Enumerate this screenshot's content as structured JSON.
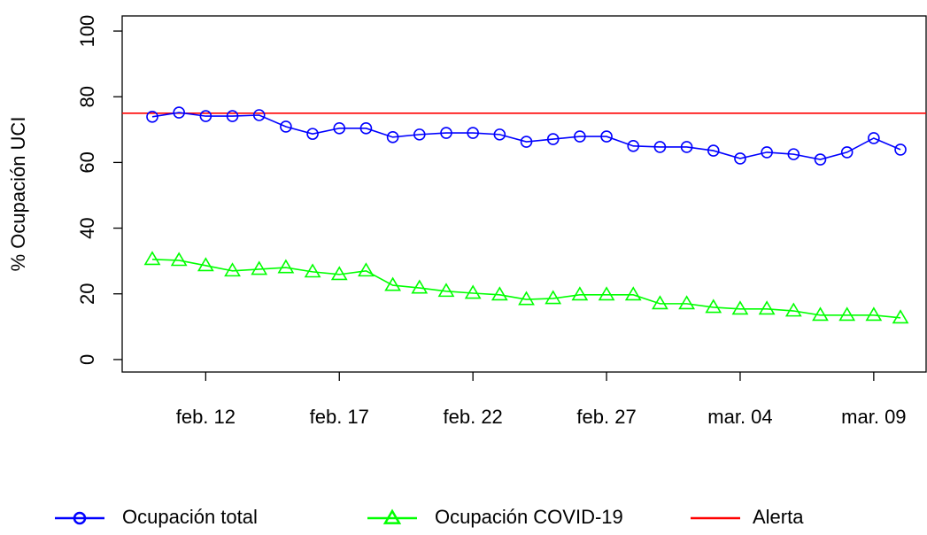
{
  "chart_data": {
    "type": "line",
    "y_label": "% Ocupación UCI",
    "categories": [
      null,
      null,
      "feb. 12",
      null,
      null,
      null,
      null,
      "feb. 17",
      null,
      null,
      null,
      null,
      "feb. 22",
      null,
      null,
      null,
      null,
      "feb. 27",
      null,
      null,
      null,
      null,
      "mar. 04",
      null,
      null,
      null,
      null,
      "mar. 09",
      null
    ],
    "series": [
      {
        "name": "Ocupación total",
        "color": "#0000ff",
        "marker": "circle",
        "values": [
          73.9,
          75.2,
          74.1,
          74.1,
          74.4,
          70.9,
          68.7,
          70.4,
          70.4,
          67.7,
          68.5,
          69.0,
          69.0,
          68.5,
          66.3,
          67.1,
          67.9,
          67.9,
          65.0,
          64.7,
          64.7,
          63.6,
          61.2,
          63.1,
          62.5,
          60.9,
          63.1,
          67.4,
          63.9
        ]
      },
      {
        "name": "Ocupación COVID-19",
        "color": "#00ff00",
        "marker": "triangle",
        "values": [
          30.5,
          30.2,
          28.6,
          27.0,
          27.5,
          28.0,
          26.7,
          25.9,
          27.0,
          22.6,
          21.8,
          20.8,
          20.2,
          19.7,
          18.3,
          18.6,
          19.7,
          19.7,
          19.7,
          17.0,
          17.0,
          15.9,
          15.4,
          15.4,
          14.8,
          13.5,
          13.5,
          13.5,
          12.7
        ]
      }
    ],
    "reference_lines": [
      {
        "name": "Alerta",
        "color": "#ff0000",
        "value": 75
      }
    ],
    "ylim": [
      -3.8,
      104.6
    ],
    "yticks": [
      0,
      20,
      40,
      60,
      80,
      100
    ],
    "legend": "bottom"
  }
}
